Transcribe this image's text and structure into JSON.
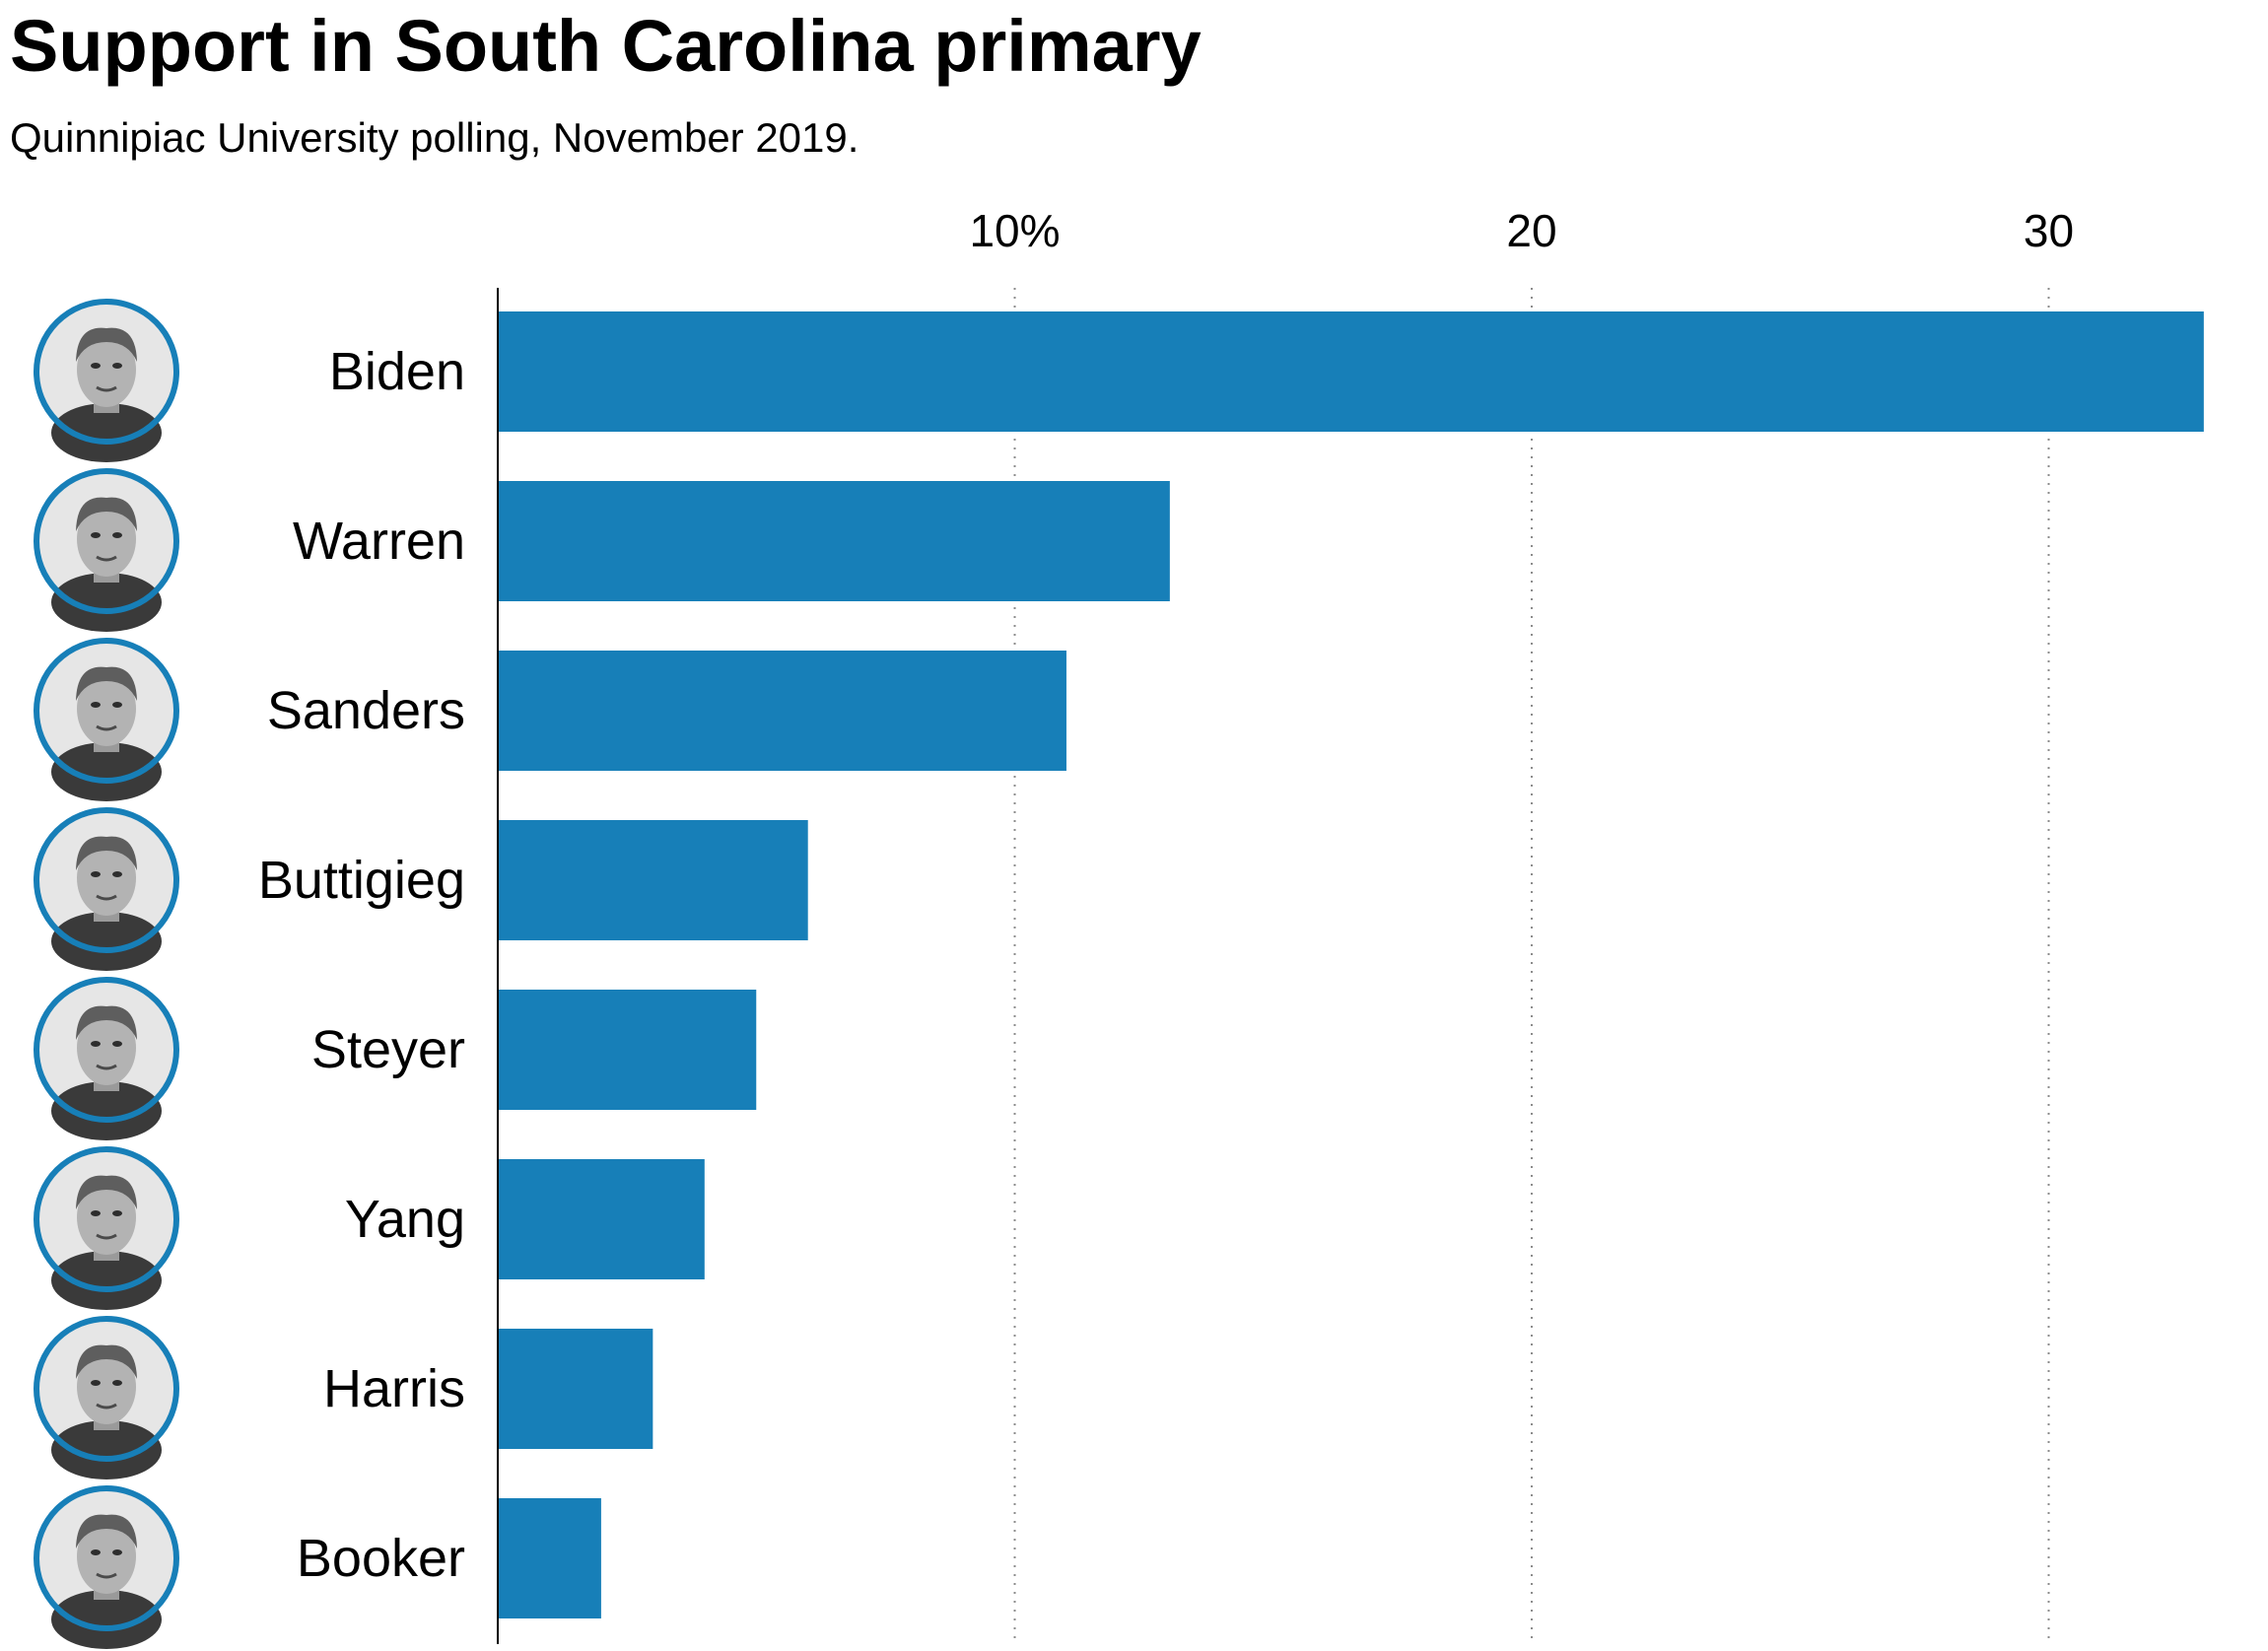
{
  "title": "Support in South Carolina primary",
  "subtitle": "Quinnipiac University polling, November 2019.",
  "colors": {
    "bar": "#177fb8",
    "avatar_ring": "#177fb8",
    "grid": "#8c8c8c",
    "axis": "#000000",
    "text": "#000000"
  },
  "chart_data": {
    "type": "bar",
    "orientation": "horizontal",
    "categories": [
      "Biden",
      "Warren",
      "Sanders",
      "Buttigieg",
      "Steyer",
      "Yang",
      "Harris",
      "Booker"
    ],
    "values": [
      33,
      13,
      11,
      6,
      5,
      4,
      3,
      2
    ],
    "xlim": [
      0,
      33.5
    ],
    "x_ticks": [
      10,
      20,
      30
    ],
    "x_tick_labels": [
      "10%",
      "20",
      "30"
    ],
    "grid": true,
    "grid_style": "dotted",
    "xlabel": "",
    "ylabel": "",
    "avatars": [
      {
        "name": "Biden",
        "icon": "biden-portrait-icon"
      },
      {
        "name": "Warren",
        "icon": "warren-portrait-icon"
      },
      {
        "name": "Sanders",
        "icon": "sanders-portrait-icon"
      },
      {
        "name": "Buttigieg",
        "icon": "buttigieg-portrait-icon"
      },
      {
        "name": "Steyer",
        "icon": "steyer-portrait-icon"
      },
      {
        "name": "Yang",
        "icon": "yang-portrait-icon"
      },
      {
        "name": "Harris",
        "icon": "harris-portrait-icon"
      },
      {
        "name": "Booker",
        "icon": "booker-portrait-icon"
      }
    ]
  }
}
